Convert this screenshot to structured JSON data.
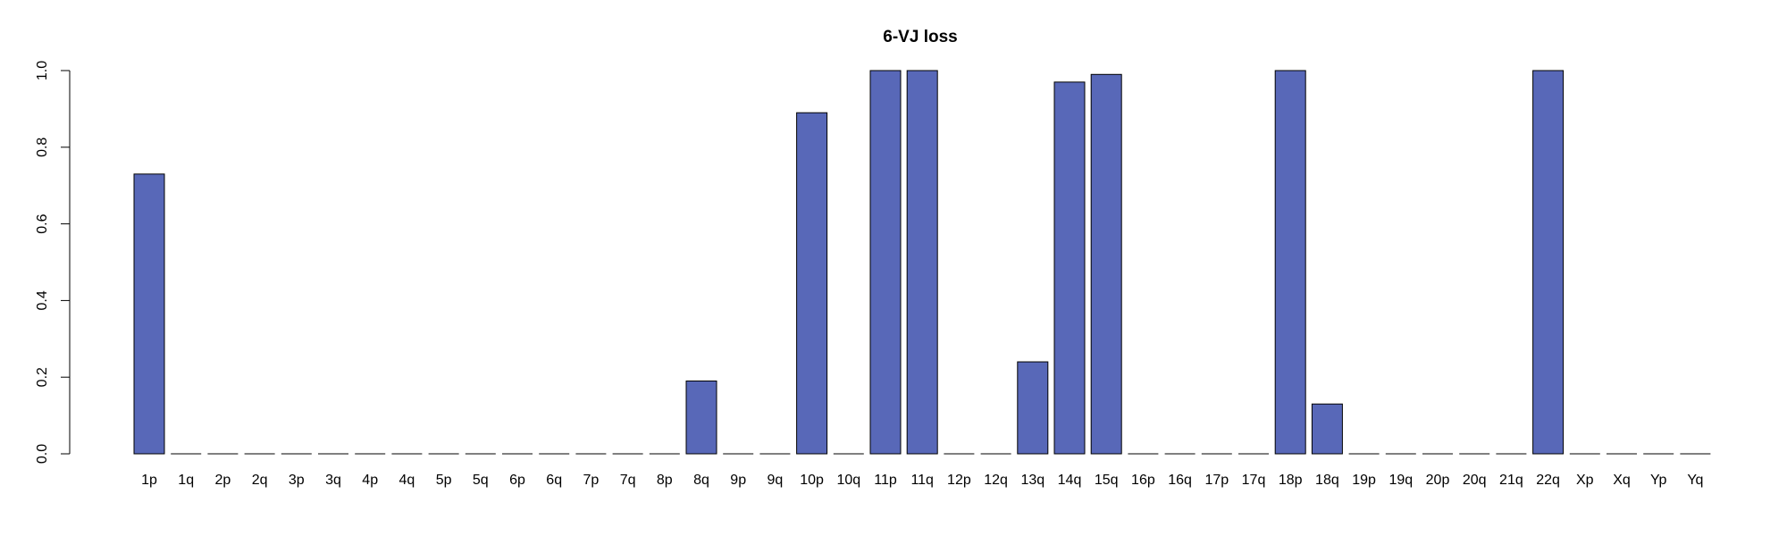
{
  "chart_data": {
    "type": "bar",
    "title": "6-VJ loss",
    "xlabel": "",
    "ylabel": "",
    "ylim": [
      0,
      1.0
    ],
    "yticks": [
      "0.0",
      "0.2",
      "0.4",
      "0.6",
      "0.8",
      "1.0"
    ],
    "grid": false,
    "bar_color": "#5868b8",
    "categories": [
      "1p",
      "1q",
      "2p",
      "2q",
      "3p",
      "3q",
      "4p",
      "4q",
      "5p",
      "5q",
      "6p",
      "6q",
      "7p",
      "7q",
      "8p",
      "8q",
      "9p",
      "9q",
      "10p",
      "10q",
      "11p",
      "11q",
      "12p",
      "12q",
      "13q",
      "14q",
      "15q",
      "16p",
      "16q",
      "17p",
      "17q",
      "18p",
      "18q",
      "19p",
      "19q",
      "20p",
      "20q",
      "21q",
      "22q",
      "Xp",
      "Xq",
      "Yp",
      "Yq"
    ],
    "values": [
      0.73,
      0,
      0,
      0,
      0,
      0,
      0,
      0,
      0,
      0,
      0,
      0,
      0,
      0,
      0,
      0.19,
      0,
      0,
      0.89,
      0,
      1.0,
      1.0,
      0,
      0,
      0.24,
      0.97,
      0.99,
      0,
      0,
      0,
      0,
      1.0,
      0.13,
      0,
      0,
      0,
      0,
      0,
      1.0,
      0,
      0,
      0,
      0
    ]
  }
}
